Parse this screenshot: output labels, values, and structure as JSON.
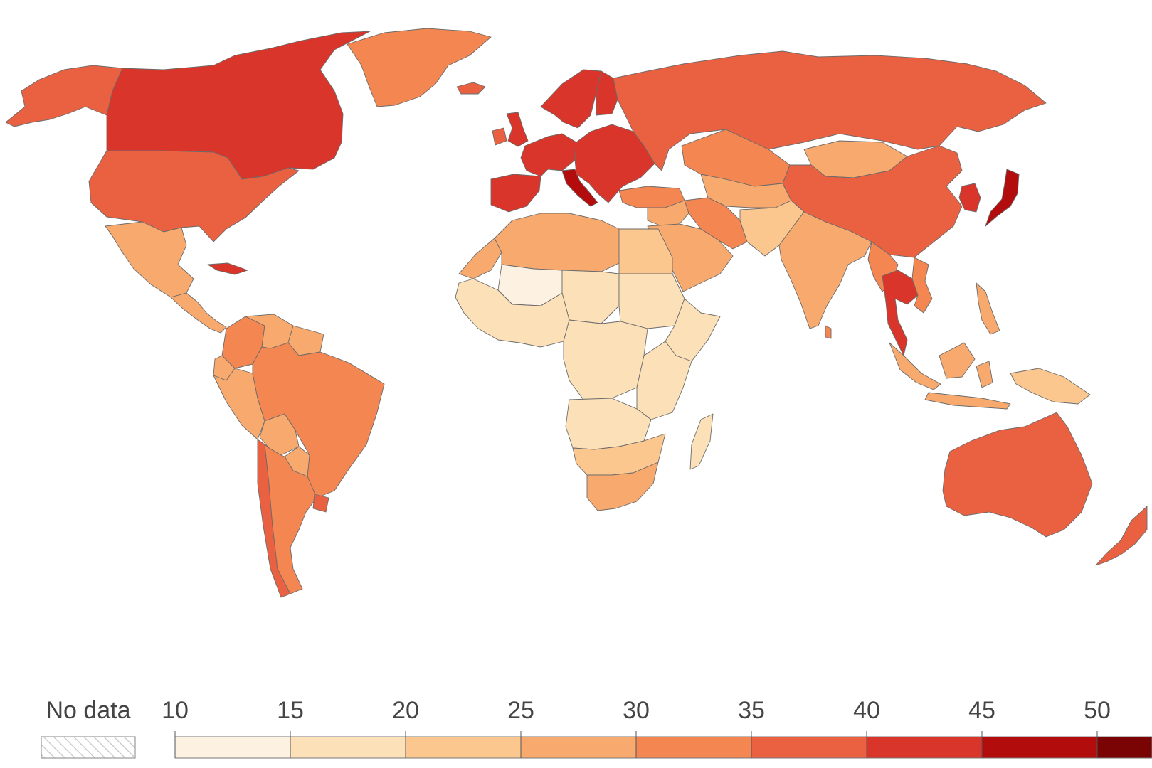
{
  "legend": {
    "no_data_label": "No data",
    "thresholds": [
      10,
      15,
      20,
      25,
      30,
      35,
      40,
      45,
      50
    ],
    "tick_labels": [
      "10",
      "15",
      "20",
      "25",
      "30",
      "35",
      "40",
      "45",
      "50"
    ],
    "bin_colors": [
      "#fdf1e2",
      "#fce0b8",
      "#fbc78e",
      "#f8aa6e",
      "#f48652",
      "#ea6142",
      "#d9352b",
      "#b30c0c",
      "#7a0303"
    ],
    "no_data_color": "#ffffff",
    "no_data_hatch_color": "#bdbdbd"
  },
  "regions": [
    {
      "name": "Canada",
      "value": 41.5
    },
    {
      "name": "Alaska",
      "value": 38.6
    },
    {
      "name": "Greenland",
      "value": 33.9
    },
    {
      "name": "United States",
      "value": 38.5
    },
    {
      "name": "Mexico",
      "value": 29.2
    },
    {
      "name": "Central America",
      "value": 26.8
    },
    {
      "name": "Cuba",
      "value": 41.2
    },
    {
      "name": "Colombia",
      "value": 31.1
    },
    {
      "name": "Venezuela",
      "value": 29.6
    },
    {
      "name": "Guianas",
      "value": 28.5
    },
    {
      "name": "Ecuador",
      "value": 28.1
    },
    {
      "name": "Peru",
      "value": 29.1
    },
    {
      "name": "Bolivia",
      "value": 25.6
    },
    {
      "name": "Brazil",
      "value": 33.5
    },
    {
      "name": "Paraguay",
      "value": 26.2
    },
    {
      "name": "Chile",
      "value": 35.3
    },
    {
      "name": "Argentina",
      "value": 32.0
    },
    {
      "name": "Uruguay",
      "value": 35.8
    },
    {
      "name": "Iceland",
      "value": 37.5
    },
    {
      "name": "United Kingdom",
      "value": 40.5
    },
    {
      "name": "Ireland",
      "value": 38.2
    },
    {
      "name": "Scandinavia",
      "value": 41.1
    },
    {
      "name": "Finland",
      "value": 42.5
    },
    {
      "name": "Western Europe",
      "value": 42.3
    },
    {
      "name": "Iberia",
      "value": 44.2
    },
    {
      "name": "Italy",
      "value": 46.5
    },
    {
      "name": "Central & Eastern Europe",
      "value": 42.1
    },
    {
      "name": "Russia",
      "value": 39.6
    },
    {
      "name": "Turkey",
      "value": 32.2
    },
    {
      "name": "Kazakhstan",
      "value": 30.6
    },
    {
      "name": "Central Asia",
      "value": 28.0
    },
    {
      "name": "Mongolia",
      "value": 28.2
    },
    {
      "name": "China",
      "value": 38.4
    },
    {
      "name": "Korea",
      "value": 43.7
    },
    {
      "name": "Japan",
      "value": 48.4
    },
    {
      "name": "Iran",
      "value": 32.0
    },
    {
      "name": "Middle East",
      "value": 26.5
    },
    {
      "name": "Arabian Peninsula",
      "value": 29.5
    },
    {
      "name": "Afghanistan & Pakistan",
      "value": 20.5
    },
    {
      "name": "India",
      "value": 28.4
    },
    {
      "name": "Sri Lanka",
      "value": 34.0
    },
    {
      "name": "Mainland Southeast Asia",
      "value": 30.5
    },
    {
      "name": "Thailand",
      "value": 40.1
    },
    {
      "name": "Vietnam",
      "value": 32.5
    },
    {
      "name": "Philippines",
      "value": 25.7
    },
    {
      "name": "Indonesia",
      "value": 29.7
    },
    {
      "name": "Papua New Guinea",
      "value": 22.4
    },
    {
      "name": "Australia",
      "value": 37.9
    },
    {
      "name": "New Zealand",
      "value": 38.0
    },
    {
      "name": "North Africa",
      "value": 28.0
    },
    {
      "name": "Western Sahara & Morocco",
      "value": 29.5
    },
    {
      "name": "Egypt",
      "value": 24.6
    },
    {
      "name": "West Africa",
      "value": 17.5
    },
    {
      "name": "Niger & Chad",
      "value": 15.5
    },
    {
      "name": "Mali",
      "value": 12.5
    },
    {
      "name": "Sudan",
      "value": 19.7
    },
    {
      "name": "Horn of Africa",
      "value": 19.2
    },
    {
      "name": "Central Africa",
      "value": 18.1
    },
    {
      "name": "East Africa",
      "value": 17.3
    },
    {
      "name": "Angola & Zambia",
      "value": 17.0
    },
    {
      "name": "Southern Africa",
      "value": 22.0
    },
    {
      "name": "South Africa",
      "value": 27.6
    },
    {
      "name": "Madagascar",
      "value": 19.5
    }
  ]
}
